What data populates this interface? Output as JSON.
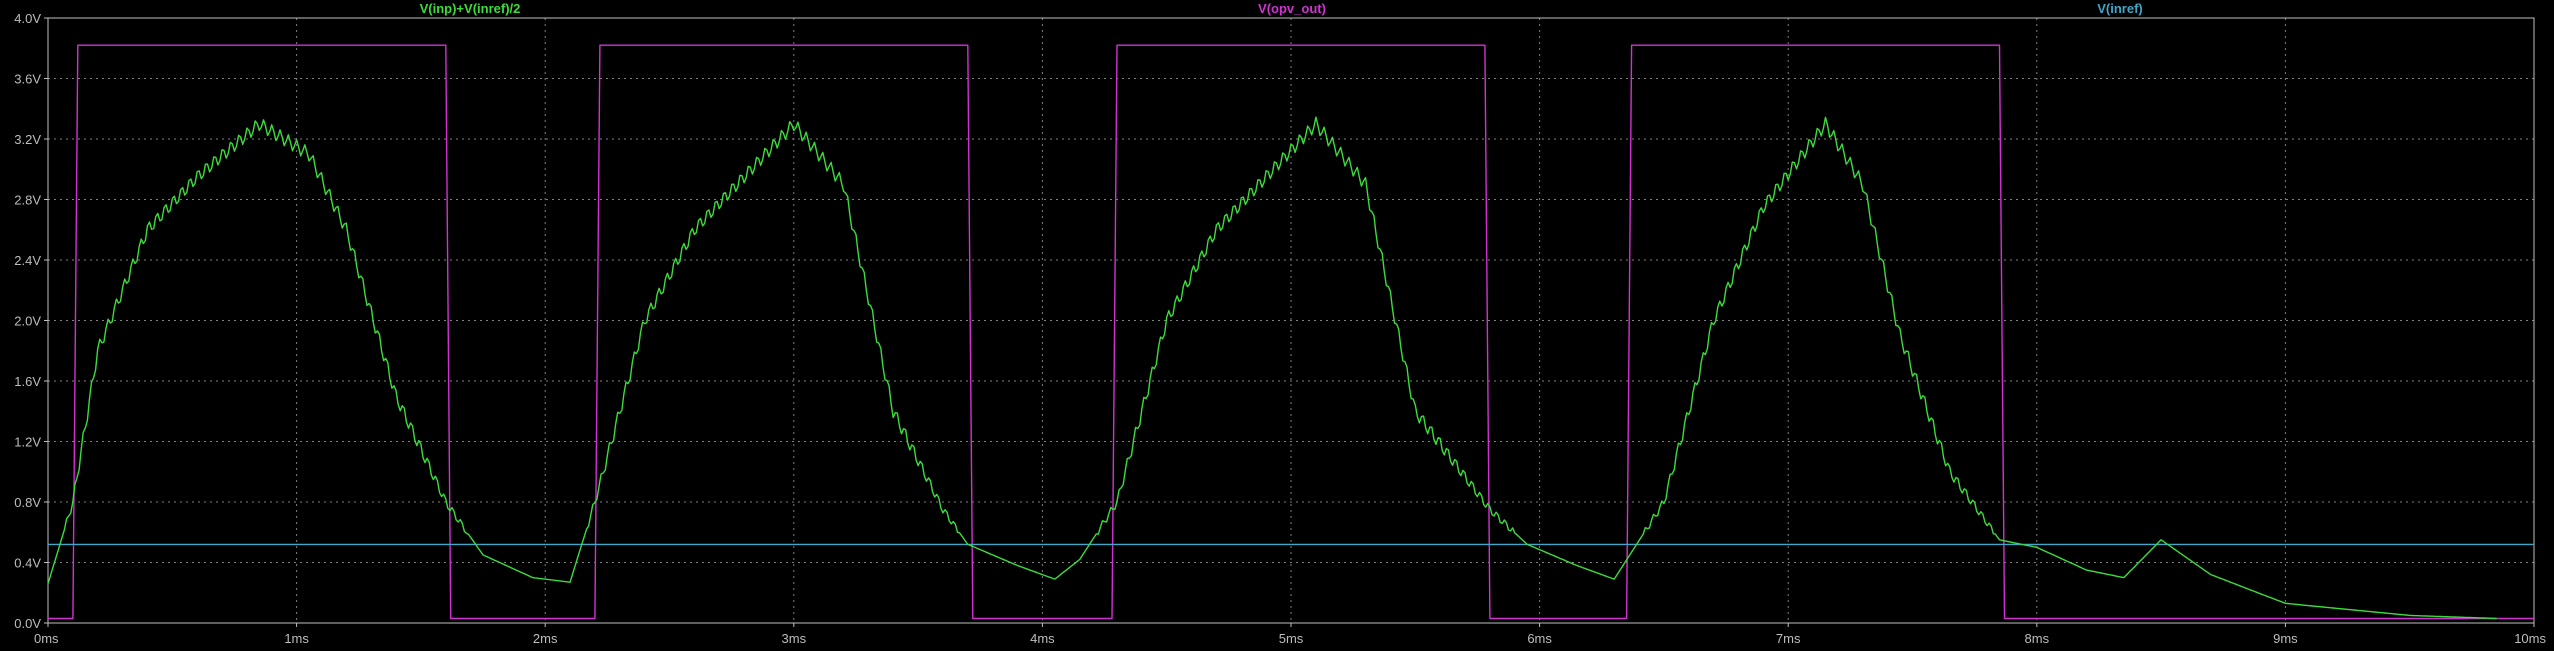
{
  "chart_data": {
    "type": "line",
    "title": "",
    "xlabel": "",
    "ylabel": "",
    "xlim": [
      0,
      10
    ],
    "ylim": [
      0,
      4.0
    ],
    "x_unit": "ms",
    "y_unit": "V",
    "grid": true,
    "x_ticks": [
      "0ms",
      "1ms",
      "2ms",
      "3ms",
      "4ms",
      "5ms",
      "6ms",
      "7ms",
      "8ms",
      "9ms",
      "10ms"
    ],
    "y_ticks": [
      "0.0V",
      "0.4V",
      "0.8V",
      "1.2V",
      "1.6V",
      "2.0V",
      "2.4V",
      "2.8V",
      "3.2V",
      "3.6V",
      "4.0V"
    ],
    "series": [
      {
        "name": "V(inp)+V(inref)/2",
        "color": "#3cdc3c",
        "x": [
          0.0,
          0.1,
          0.2,
          0.4,
          0.6,
          0.85,
          1.05,
          1.2,
          1.4,
          1.6,
          1.75,
          1.95,
          2.1,
          2.2,
          2.4,
          2.6,
          2.8,
          3.0,
          3.2,
          3.4,
          3.6,
          3.7,
          3.9,
          4.05,
          4.15,
          4.3,
          4.5,
          4.7,
          4.9,
          5.1,
          5.3,
          5.5,
          5.8,
          5.95,
          6.15,
          6.3,
          6.5,
          6.7,
          6.9,
          7.15,
          7.3,
          7.45,
          7.65,
          7.85,
          8.0,
          8.2,
          8.35,
          8.5,
          8.7,
          9.0,
          9.5,
          9.85
        ],
        "y": [
          0.26,
          0.8,
          1.8,
          2.6,
          2.95,
          3.3,
          3.1,
          2.6,
          1.5,
          0.8,
          0.45,
          0.3,
          0.27,
          0.8,
          2.0,
          2.6,
          2.95,
          3.3,
          2.9,
          1.4,
          0.75,
          0.52,
          0.38,
          0.29,
          0.42,
          0.8,
          2.0,
          2.6,
          2.95,
          3.3,
          2.9,
          1.4,
          0.75,
          0.52,
          0.38,
          0.29,
          0.8,
          2.0,
          2.75,
          3.3,
          2.9,
          1.9,
          1.0,
          0.55,
          0.5,
          0.35,
          0.3,
          0.55,
          0.32,
          0.13,
          0.05,
          0.03
        ]
      },
      {
        "name": "V(opv_out)",
        "color": "#d232d2",
        "x": [
          0.0,
          0.1,
          0.12,
          1.6,
          1.62,
          2.2,
          2.22,
          3.7,
          3.72,
          4.28,
          4.3,
          5.78,
          5.8,
          6.35,
          6.37,
          7.85,
          7.87,
          10.0
        ],
        "y": [
          0.03,
          0.03,
          3.82,
          3.82,
          0.03,
          0.03,
          3.82,
          3.82,
          0.03,
          0.03,
          3.82,
          3.82,
          0.03,
          0.03,
          3.82,
          3.82,
          0.03,
          0.03
        ]
      },
      {
        "name": "V(inref)",
        "color": "#3fa7c9",
        "x": [
          0.0,
          10.0
        ],
        "y": [
          0.52,
          0.52
        ]
      }
    ]
  }
}
